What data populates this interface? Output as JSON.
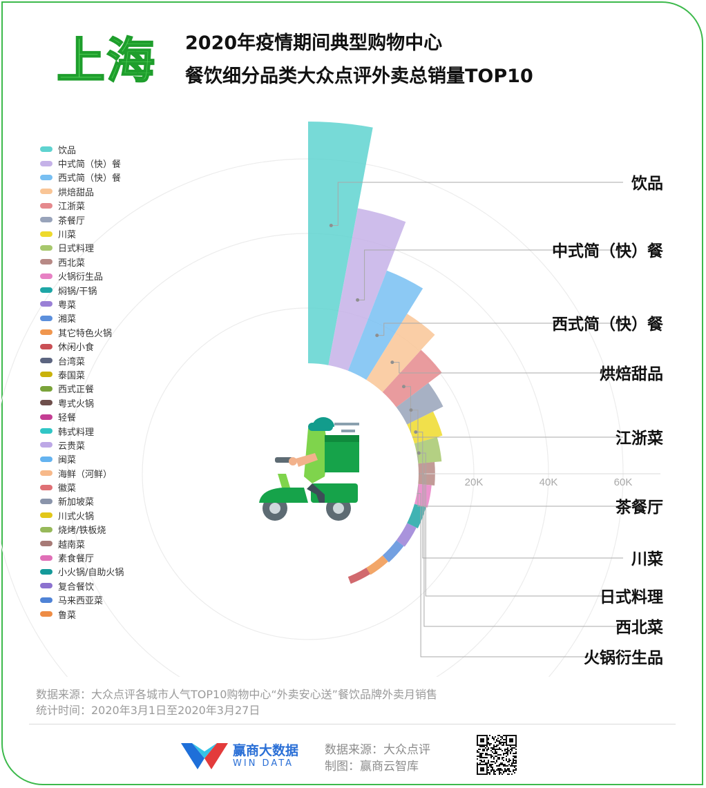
{
  "header": {
    "city": "上海",
    "title_line1": "2020年疫情期间典型购物中心",
    "title_line2": "餐饮细分品类大众点评外卖总销量TOP10"
  },
  "legend": {
    "items": [
      {
        "label": "饮品",
        "color": "#5fd3d0"
      },
      {
        "label": "中式简（快）餐",
        "color": "#c5b2e8"
      },
      {
        "label": "西式简（快）餐",
        "color": "#78bff2"
      },
      {
        "label": "烘焙甜品",
        "color": "#f9c596"
      },
      {
        "label": "江浙菜",
        "color": "#e5898d"
      },
      {
        "label": "茶餐厅",
        "color": "#98a3ba"
      },
      {
        "label": "川菜",
        "color": "#eeda2c"
      },
      {
        "label": "日式料理",
        "color": "#a7c86d"
      },
      {
        "label": "西北菜",
        "color": "#b78985"
      },
      {
        "label": "火锅衍生品",
        "color": "#e781c4"
      },
      {
        "label": "焖锅/干锅",
        "color": "#1ea6a6"
      },
      {
        "label": "粤菜",
        "color": "#9a80d6"
      },
      {
        "label": "湘菜",
        "color": "#5b8fdc"
      },
      {
        "label": "其它特色火锅",
        "color": "#f0964e"
      },
      {
        "label": "休闲小食",
        "color": "#c94f55"
      },
      {
        "label": "台湾菜",
        "color": "#5c6580"
      },
      {
        "label": "泰国菜",
        "color": "#c9b20b"
      },
      {
        "label": "西式正餐",
        "color": "#7aa33a"
      },
      {
        "label": "粤式火锅",
        "color": "#6e4f4c"
      },
      {
        "label": "轻餐",
        "color": "#c43d93"
      },
      {
        "label": "韩式料理",
        "color": "#31c6c6"
      },
      {
        "label": "云贵菜",
        "color": "#bda8e6"
      },
      {
        "label": "闽菜",
        "color": "#64b3f0"
      },
      {
        "label": "海鲜（河鲜）",
        "color": "#f7b98a"
      },
      {
        "label": "徽菜",
        "color": "#df7075"
      },
      {
        "label": "新加坡菜",
        "color": "#8a94aa"
      },
      {
        "label": "川式火锅",
        "color": "#e2c719"
      },
      {
        "label": "烧烤/铁板烧",
        "color": "#97b95a"
      },
      {
        "label": "越南菜",
        "color": "#a77a76"
      },
      {
        "label": "素食餐厅",
        "color": "#e06fb7"
      },
      {
        "label": "小火锅/自助火锅",
        "color": "#159a9a"
      },
      {
        "label": "复合餐饮",
        "color": "#8c72cf"
      },
      {
        "label": "马来西亚菜",
        "color": "#4f83d6"
      },
      {
        "label": "鲁菜",
        "color": "#ee8c45"
      }
    ]
  },
  "chart_data": {
    "type": "bar",
    "subtype": "polar-bar (nightingale rose)",
    "categories": [
      "饮品",
      "中式简（快）餐",
      "西式简（快）餐",
      "烘焙甜品",
      "江浙菜",
      "茶餐厅",
      "川菜",
      "日式料理",
      "西北菜",
      "火锅衍生品",
      "焖锅/干锅",
      "粤菜",
      "湘菜",
      "其它特色火锅",
      "休闲小食",
      "台湾菜",
      "泰国菜",
      "西式正餐",
      "粤式火锅",
      "轻餐",
      "韩式料理",
      "云贵菜",
      "闽菜",
      "海鲜（河鲜）",
      "徽菜",
      "新加坡菜",
      "川式火锅",
      "烧烤/铁板烧",
      "越南菜",
      "素食餐厅",
      "小火锅/自助火锅",
      "复合餐饮",
      "马来西亚菜",
      "鲁菜"
    ],
    "values": [
      70000,
      48000,
      34000,
      26000,
      20500,
      16000,
      13000,
      11500,
      9600,
      8800,
      8400,
      8000,
      7700,
      7400,
      7200,
      4800,
      4400,
      4200,
      4000,
      3800,
      3600,
      3400,
      3200,
      3000,
      3000,
      2800,
      2600,
      2400,
      2200,
      2000,
      1800,
      1600,
      1500,
      1400
    ],
    "top10_labels": [
      "饮品",
      "中式简（快）餐",
      "西式简（快）餐",
      "烘焙甜品",
      "江浙菜",
      "茶餐厅",
      "川菜",
      "日式料理",
      "西北菜",
      "火锅衍生品"
    ],
    "radial_axis": {
      "ticks": [
        "0",
        "20K",
        "40K",
        "60K"
      ],
      "range": [
        0,
        70000
      ]
    },
    "grid": true,
    "legend_position": "left"
  },
  "footer": {
    "source_line1": "数据来源：大众点评各城市人气TOP10购物中心“外卖安心送”餐饮品牌外卖月销售",
    "source_line2": "统计时间：2020年3月1日至2020年3月27日",
    "brand_name": "赢商大数据",
    "brand_en": "WIN DATA",
    "data_source": "数据来源：大众点评",
    "made_by": "制图：赢商云智库"
  },
  "icons": [
    "delivery-scooter-icon",
    "windata-logo-icon",
    "qr-code-icon"
  ],
  "accent_color": "#3cb94b"
}
